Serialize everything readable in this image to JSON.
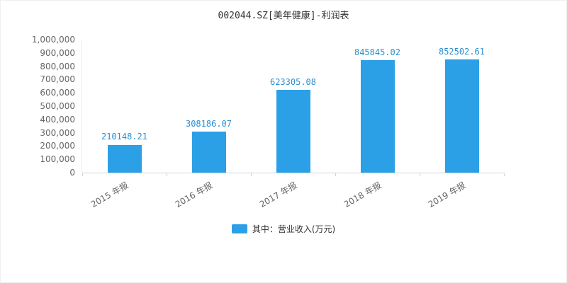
{
  "title": "002044.SZ[美年健康]-利润表",
  "legend": {
    "label": "其中：营业收入(万元)"
  },
  "colors": {
    "bar": "#2ba0e6",
    "value_label": "#2a8fd0",
    "axis_line": "#ccd6e0",
    "tick_text": "#666666",
    "title_text": "#333333"
  },
  "chart_data": {
    "type": "bar",
    "title": "002044.SZ[美年健康]-利润表",
    "categories": [
      "2015 年报",
      "2016 年报",
      "2017 年报",
      "2018 年报",
      "2019 年报"
    ],
    "series": [
      {
        "name": "其中：营业收入(万元)",
        "values": [
          210148.21,
          308186.07,
          623305.08,
          845845.02,
          852502.61
        ],
        "data_labels": [
          "210148.21",
          "308186.07",
          "623305.08",
          "845845.02",
          "852502.61"
        ]
      }
    ],
    "xlabel": "",
    "ylabel": "",
    "ylim": [
      0,
      1000000
    ],
    "ytick_step": 100000,
    "ytick_labels": [
      "0",
      "100,000",
      "200,000",
      "300,000",
      "400,000",
      "500,000",
      "600,000",
      "700,000",
      "800,000",
      "900,000",
      "1,000,000"
    ],
    "grid": false,
    "legend_position": "bottom",
    "x_label_rotation_deg": -30
  }
}
